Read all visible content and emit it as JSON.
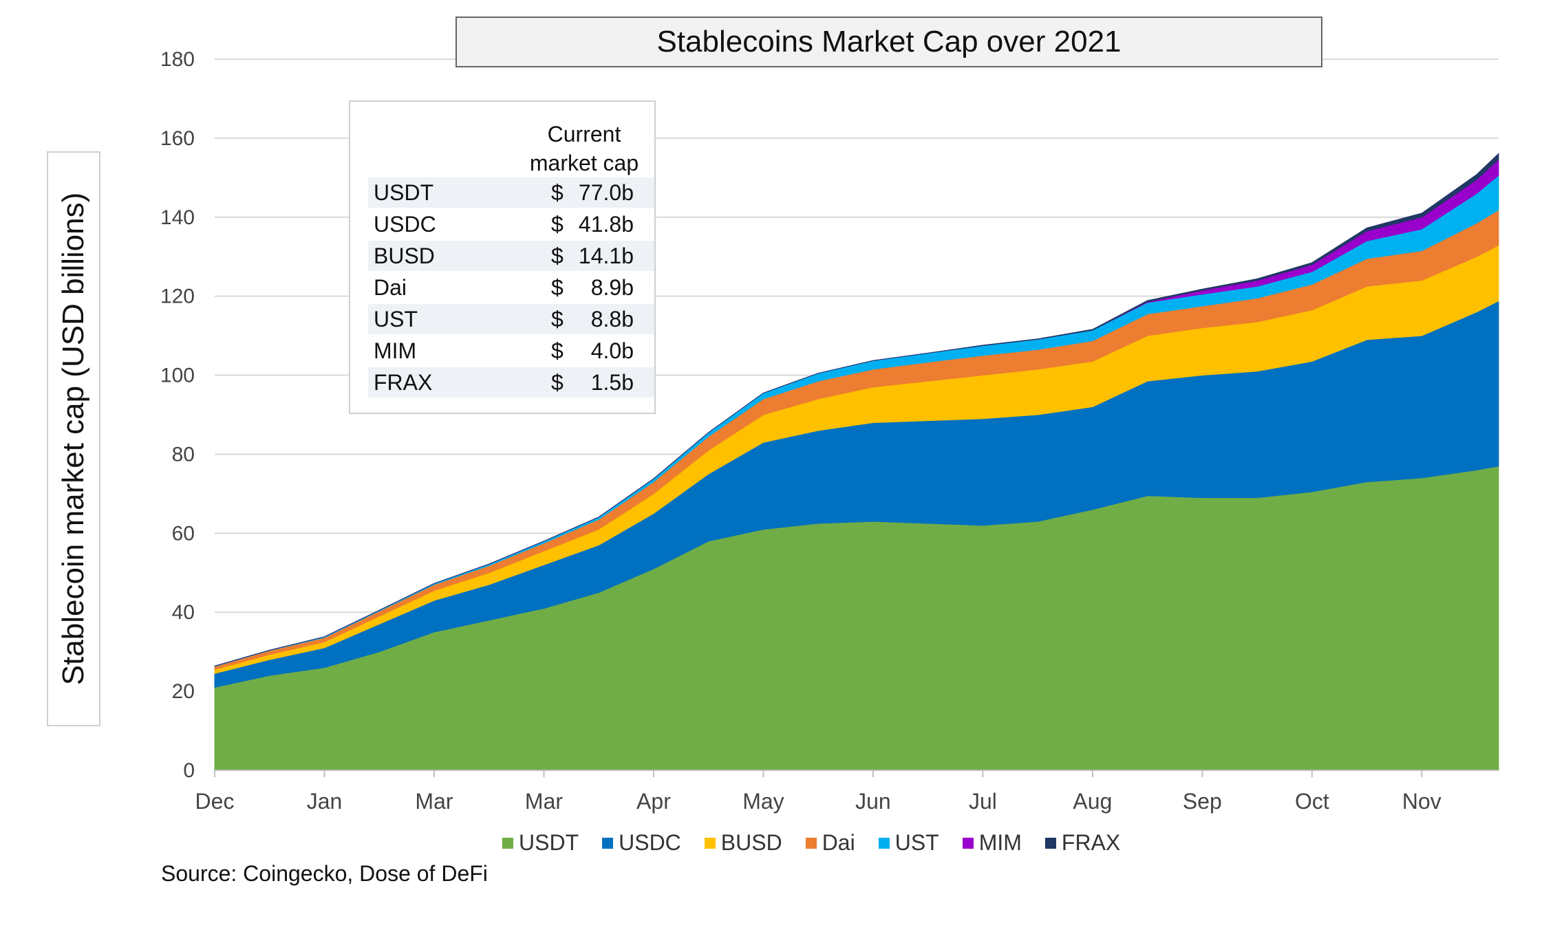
{
  "chart_data": {
    "type": "area",
    "stacked": true,
    "title": "Stablecoins Market Cap over 2021",
    "ylabel": "Stablecoin market cap (USD billions)",
    "xlabel": "",
    "ylim": [
      0,
      180
    ],
    "yticks": [
      0,
      20,
      40,
      60,
      80,
      100,
      120,
      140,
      160,
      180
    ],
    "xticks": [
      "Dec",
      "Jan",
      "Mar",
      "Mar",
      "Apr",
      "May",
      "Jun",
      "Jul",
      "Aug",
      "Sep",
      "Oct",
      "Nov"
    ],
    "grid": "horizontal",
    "legend_position": "bottom",
    "x": [
      0,
      0.5,
      1,
      1.5,
      2,
      2.5,
      3,
      3.5,
      4,
      4.5,
      5,
      5.5,
      6,
      6.5,
      7,
      7.5,
      8,
      8.5,
      9,
      9.5,
      10,
      10.5,
      11,
      11.5,
      11.7
    ],
    "series": [
      {
        "name": "USDT",
        "color": "#70ad47",
        "values": [
          21,
          24,
          26,
          30,
          35,
          38,
          41,
          45,
          51,
          58,
          61,
          62.5,
          63,
          62.5,
          62,
          63,
          66,
          69.5,
          69,
          69,
          70.5,
          73,
          74,
          76,
          77
        ]
      },
      {
        "name": "USDC",
        "color": "#0070c0",
        "values": [
          3.5,
          4,
          5,
          7,
          8,
          9,
          11,
          12,
          14,
          17,
          22,
          23.5,
          25,
          26,
          27,
          27,
          26,
          29,
          31,
          32,
          33,
          36,
          36,
          40,
          41.8
        ]
      },
      {
        "name": "BUSD",
        "color": "#ffc000",
        "values": [
          1,
          1.3,
          1.5,
          2,
          2.5,
          3,
          3.5,
          4,
          5,
          6,
          7,
          8,
          9,
          10,
          11,
          11.5,
          11.5,
          11.5,
          12,
          12.5,
          13,
          13.5,
          14,
          14,
          14.1
        ]
      },
      {
        "name": "Dai",
        "color": "#ed7d31",
        "values": [
          0.8,
          1,
          1.1,
          1.3,
          1.5,
          1.8,
          2,
          2.5,
          3,
          3.5,
          4,
          4.5,
          4.5,
          4.8,
          5,
          5,
          5.2,
          5.5,
          5.5,
          6,
          6.5,
          7,
          7.5,
          8.5,
          8.9
        ]
      },
      {
        "name": "UST",
        "color": "#00b0f0",
        "values": [
          0.1,
          0.1,
          0.2,
          0.2,
          0.3,
          0.4,
          0.5,
          0.6,
          0.8,
          1,
          1.5,
          2,
          2.2,
          2.3,
          2.5,
          2.6,
          2.7,
          2.9,
          3,
          3,
          3.2,
          4.5,
          5.5,
          7.5,
          8.8
        ]
      },
      {
        "name": "MIM",
        "color": "#9900cc",
        "values": [
          0,
          0,
          0,
          0,
          0,
          0,
          0,
          0,
          0,
          0,
          0,
          0,
          0,
          0,
          0,
          0,
          0,
          0.2,
          1,
          1.5,
          1.8,
          2.5,
          3,
          3.5,
          4
        ]
      },
      {
        "name": "FRAX",
        "color": "#203864",
        "values": [
          0,
          0,
          0,
          0,
          0,
          0,
          0,
          0,
          0,
          0,
          0,
          0,
          0,
          0,
          0.1,
          0.1,
          0.2,
          0.3,
          0.3,
          0.4,
          0.5,
          0.8,
          1,
          1.3,
          1.5
        ]
      }
    ],
    "table": {
      "header_line1": "Current",
      "header_line2": "market cap",
      "rows": [
        {
          "name": "USDT",
          "dollar": "$",
          "value": "77.0b"
        },
        {
          "name": "USDC",
          "dollar": "$",
          "value": "41.8b"
        },
        {
          "name": "BUSD",
          "dollar": "$",
          "value": "14.1b"
        },
        {
          "name": "Dai",
          "dollar": "$",
          "value": "8.9b"
        },
        {
          "name": "UST",
          "dollar": "$",
          "value": "8.8b"
        },
        {
          "name": "MIM",
          "dollar": "$",
          "value": "4.0b"
        },
        {
          "name": "FRAX",
          "dollar": "$",
          "value": "1.5b"
        }
      ]
    },
    "source": "Source: Coingecko, Dose of DeFi"
  }
}
